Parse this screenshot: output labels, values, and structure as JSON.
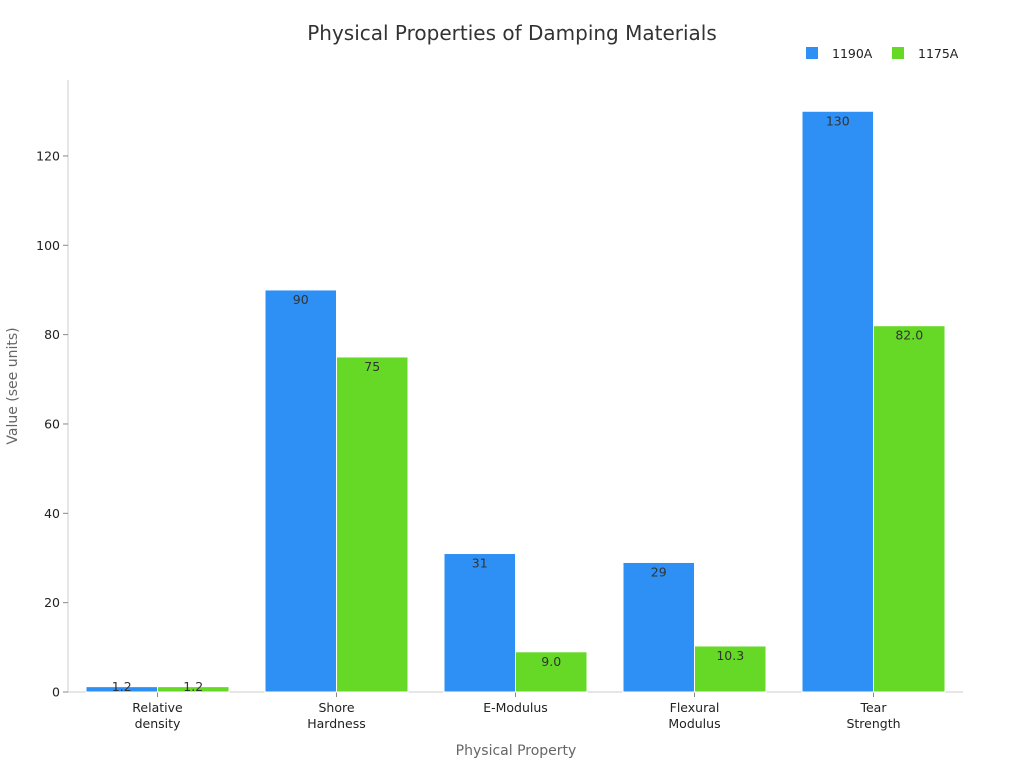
{
  "chart_data": {
    "type": "bar",
    "title": "Physical Properties of Damping Materials",
    "xlabel": "Physical Property",
    "ylabel": "Value (see units)",
    "categories": [
      [
        "Relative",
        "density"
      ],
      [
        "Shore",
        "Hardness"
      ],
      [
        "E-Modulus"
      ],
      [
        "Flexural",
        "Modulus"
      ],
      [
        "Tear",
        "Strength"
      ]
    ],
    "series": [
      {
        "name": "1190A",
        "color": "#2e90f5",
        "values": [
          1.2,
          90,
          31,
          29,
          130
        ],
        "labels": [
          "1.2",
          "90",
          "31",
          "29",
          "130"
        ]
      },
      {
        "name": "1175A",
        "color": "#66d926",
        "values": [
          1.2,
          75,
          9.0,
          10.3,
          82.0
        ],
        "labels": [
          "1.2",
          "75",
          "9.0",
          "10.3",
          "82.0"
        ]
      }
    ],
    "ylim": [
      0,
      137
    ],
    "yticks": [
      0,
      20,
      40,
      60,
      80,
      100,
      120
    ],
    "legend": "top-right",
    "grid": false
  }
}
